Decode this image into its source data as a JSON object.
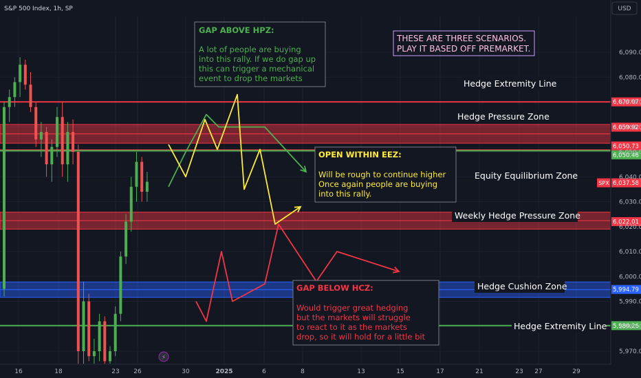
{
  "header": {
    "symbol": "S&P 500 Index, 1h, SP"
  },
  "currency_button": "USD",
  "chart_data": {
    "type": "candlestick",
    "title": "S&P 500 Index, 1h, SP",
    "x_ticks": [
      "16",
      "18",
      "23",
      "26",
      "30",
      "2025",
      "6",
      "8",
      "13",
      "15",
      "17",
      "21",
      "23",
      "27",
      "29"
    ],
    "y_ticks": [
      5970,
      5980,
      5990,
      6000,
      6010,
      6020,
      6030,
      6040,
      6050,
      6060,
      6070,
      6080,
      6090
    ],
    "ylim": [
      5965,
      6096
    ],
    "grid": true,
    "price_labels": [
      {
        "value": 6070.07,
        "text": "6,070.07",
        "color": "#f23645"
      },
      {
        "value": 6059.92,
        "text": "6,059.92",
        "color": "#f23645"
      },
      {
        "value": 6050.73,
        "text": "6,050.73",
        "color": "#f23645"
      },
      {
        "value": 6050.46,
        "text": "6,050.46",
        "color": "#4caf50"
      },
      {
        "value": 6037.58,
        "text": "6,037.58",
        "color": "#f23645",
        "tag": "SPX"
      },
      {
        "value": 6022.01,
        "text": "6,022.01",
        "color": "#f23645"
      },
      {
        "value": 5994.79,
        "text": "5,994.79",
        "color": "#2962ff"
      },
      {
        "value": 5980.26,
        "text": "5,980.26",
        "color": "#4caf50"
      }
    ],
    "zones": [
      {
        "label": "Hedge Extremity Line",
        "type": "line",
        "value": 6070.07,
        "color": "#f23645"
      },
      {
        "label": "Hedge Pressure Zone",
        "type": "band",
        "from": 6053.5,
        "to": 6061,
        "color": "#f23645"
      },
      {
        "label": "",
        "type": "line",
        "value": 6050.73,
        "color": "#f23645"
      },
      {
        "label": "",
        "type": "line",
        "value": 6050.46,
        "color": "#4caf50"
      },
      {
        "label": "Equity Equilibrium Zone",
        "type": "text",
        "value": 6036.5
      },
      {
        "label": "Weekly Hedge Pressure Zone",
        "type": "band",
        "from": 6019,
        "to": 6025.8,
        "color": "#f23645"
      },
      {
        "label": "Hedge Cushion Zone",
        "type": "band",
        "from": 5991.6,
        "to": 5997.8,
        "color": "#2962ff"
      },
      {
        "label": "Hedge Extremity Line",
        "type": "line",
        "value": 5980.26,
        "color": "#4caf50"
      }
    ],
    "candles": [
      [
        5995,
        6070,
        5992,
        6068
      ],
      [
        6068,
        6075,
        6062,
        6072
      ],
      [
        6072,
        6080,
        6068,
        6078
      ],
      [
        6078,
        6088,
        6072,
        6085
      ],
      [
        6085,
        6087,
        6075,
        6077
      ],
      [
        6077,
        6082,
        6066,
        6068
      ],
      [
        6068,
        6070,
        6052,
        6055
      ],
      [
        6055,
        6062,
        6048,
        6058
      ],
      [
        6058,
        6060,
        6040,
        6045
      ],
      [
        6045,
        6055,
        6038,
        6052
      ],
      [
        6052,
        6068,
        6048,
        6064
      ],
      [
        6064,
        6070,
        6040,
        6045
      ],
      [
        6045,
        6062,
        6038,
        6058
      ],
      [
        6058,
        6063,
        6045,
        6050
      ],
      [
        6050,
        6053,
        5965,
        5970
      ],
      [
        5970,
        5998,
        5965,
        5990
      ],
      [
        5990,
        5993,
        5966,
        5968
      ],
      [
        5968,
        5975,
        5965,
        5970
      ],
      [
        5970,
        5985,
        5966,
        5982
      ],
      [
        5982,
        5984,
        5965,
        5966
      ],
      [
        5966,
        5972,
        5965,
        5970
      ],
      [
        5970,
        5988,
        5968,
        5985
      ],
      [
        5985,
        6010,
        5982,
        6008
      ],
      [
        6008,
        6025,
        6005,
        6022
      ],
      [
        6022,
        6040,
        6018,
        6036
      ],
      [
        6036,
        6050,
        6030,
        6046
      ],
      [
        6046,
        6048,
        6030,
        6034
      ],
      [
        6034,
        6042,
        6030,
        6038
      ]
    ]
  },
  "scenarios_note": {
    "line1": "THESE ARE THREE SCENARIOS.",
    "line2": "PLAY IT BASED OFF PREMARKET."
  },
  "annotations": {
    "gap_above": {
      "title": "GAP ABOVE HPZ:",
      "lines": [
        "A lot of people are buying",
        "into this rally. If we do gap up",
        "this can trigger a mechanical",
        "event to drop the markets"
      ],
      "color": "#4caf50"
    },
    "open_within": {
      "title": "OPEN WITHIN EEZ:",
      "lines": [
        "Will be rough to continue higher",
        "Once again people are buying",
        "into this rally."
      ],
      "color": "#ffeb3b"
    },
    "gap_below": {
      "title": "GAP BELOW HCZ:",
      "lines": [
        "Would trigger great hedging",
        "but the markets will struggle",
        "to react to it as the markets",
        "drop, so it will hold for a little bit"
      ],
      "color": "#f23645"
    }
  },
  "scenario_paths": {
    "green": [
      [
        245,
        6036
      ],
      [
        270,
        6050
      ],
      [
        300,
        6065
      ],
      [
        318,
        6060
      ],
      [
        385,
        6060
      ],
      [
        445,
        6042
      ]
    ],
    "yellow": [
      [
        245,
        6053
      ],
      [
        270,
        6040
      ],
      [
        298,
        6063
      ],
      [
        316,
        6051
      ],
      [
        345,
        6073
      ],
      [
        355,
        6035
      ],
      [
        378,
        6051
      ],
      [
        400,
        6021
      ],
      [
        437,
        6028
      ]
    ],
    "red": [
      [
        285,
        5990
      ],
      [
        300,
        5982
      ],
      [
        322,
        6010
      ],
      [
        338,
        5990
      ],
      [
        385,
        5997
      ],
      [
        405,
        6021
      ],
      [
        460,
        5998
      ],
      [
        490,
        6010
      ],
      [
        580,
        6002
      ]
    ]
  }
}
